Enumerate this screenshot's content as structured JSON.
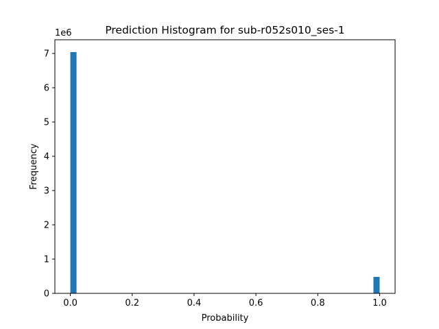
{
  "chart_data": {
    "type": "bar",
    "title": "Prediction Histogram for sub-r052s010_ses-1",
    "xlabel": "Probability",
    "ylabel": "Frequency",
    "y_offset_label": "1e6",
    "y_scale": 1000000,
    "bins": 50,
    "bin_range": [
      0,
      1
    ],
    "xlim": [
      -0.05,
      1.05
    ],
    "ylim": [
      0,
      7400000
    ],
    "xticks": [
      "0.0",
      "0.2",
      "0.4",
      "0.6",
      "0.8",
      "1.0"
    ],
    "yticks": [
      "0",
      "1",
      "2",
      "3",
      "4",
      "5",
      "6",
      "7"
    ],
    "bars": [
      {
        "bin_start": 0.0,
        "bin_end": 0.02,
        "value": 7040000
      },
      {
        "bin_start": 0.98,
        "bin_end": 1.0,
        "value": 480000
      }
    ],
    "bar_color": "#1f77b4",
    "grid": false,
    "legend": "none"
  }
}
